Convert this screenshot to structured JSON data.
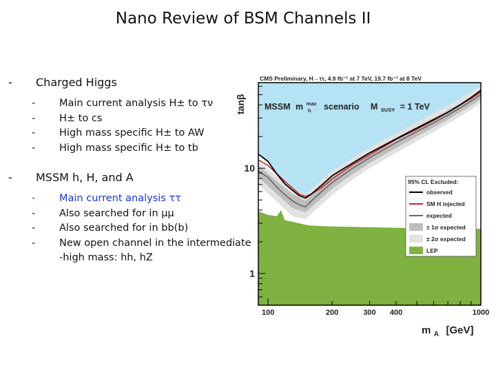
{
  "slide": {
    "title": "Nano Review of BSM Channels II",
    "sections": [
      {
        "label": "Charged Higgs",
        "items": [
          "Main current analysis H± to τν",
          "H± to cs",
          "High mass specific H± to AW",
          "High mass specific H± to tb"
        ]
      },
      {
        "label": "MSSM h, H, and A",
        "items": [
          "Main current analysis ττ",
          "Also searched for in μμ",
          "Also searched for in bb(b)",
          "New open channel in the intermediate"
        ],
        "continuation": "-high mass: hh, hZ"
      }
    ]
  },
  "colors": {
    "highlight_text": "#1a35c9",
    "excluded_region": "#b6e3f3",
    "lep": "#7fb241",
    "band_1sigma": "#bdbdbd",
    "band_2sigma": "#e2e2e2",
    "observed": "#000000",
    "sm_h_injected": "#c62828",
    "expected": "#666666"
  },
  "chart_data": {
    "type": "area",
    "header": "CMS Preliminary, H→ττ, 4.9 fb⁻¹ at 7 TeV, 19.7 fb⁻¹ at 8 TeV",
    "scenario": {
      "prefix": "MSSM",
      "m": "m",
      "sub": "h",
      "sup": "max",
      "word": "scenario",
      "msusy_m": "M",
      "msusy_sub": "SUSY",
      "msusy_val": "= 1 TeV"
    },
    "xlabel": "m",
    "xlabel_sub": "A",
    "xlabel_unit": "[GeV]",
    "ylabel": "tanβ",
    "xscale": "log",
    "yscale": "log",
    "xlim": [
      90,
      1000
    ],
    "ylim": [
      0.5,
      65
    ],
    "xticks": [
      {
        "value": 100,
        "label": "100"
      },
      {
        "value": 200,
        "label": "200"
      },
      {
        "value": 300,
        "label": "300"
      },
      {
        "value": 400,
        "label": "400"
      },
      {
        "value": 1000,
        "label": "1000"
      }
    ],
    "yticks": [
      {
        "value": 1,
        "label": "1"
      },
      {
        "value": 10,
        "label": "10"
      }
    ],
    "legend": {
      "title": "95% CL Excluded:",
      "placement": "right",
      "entries": [
        {
          "label": "observed",
          "style": "line",
          "color": "#000000"
        },
        {
          "label": "SM H injected",
          "style": "line",
          "color": "#c62828"
        },
        {
          "label": "expected",
          "style": "line",
          "color": "#666666"
        },
        {
          "label": "± 1σ expected",
          "style": "box",
          "color": "#bdbdbd"
        },
        {
          "label": "± 2σ expected",
          "style": "box",
          "color": "#e2e2e2"
        },
        {
          "label": "LEP",
          "style": "box",
          "color": "#7fb241"
        }
      ]
    },
    "series": {
      "observed": {
        "x": [
          90,
          100,
          110,
          120,
          130,
          140,
          150,
          160,
          180,
          200,
          250,
          300,
          400,
          500,
          600,
          700,
          800,
          900,
          1000
        ],
        "y": [
          13.6,
          11.6,
          8.8,
          7.1,
          6.2,
          5.5,
          5.2,
          5.7,
          7.0,
          8.5,
          11.2,
          14.0,
          19.0,
          24.0,
          29.0,
          34.0,
          40.0,
          47.0,
          55.0
        ]
      },
      "sm_h_injected": {
        "x": [
          90,
          100,
          120,
          140,
          150,
          160,
          180,
          200,
          250,
          300,
          400,
          500,
          600,
          700,
          800,
          900,
          1000
        ],
        "y": [
          12.0,
          10.6,
          7.5,
          5.7,
          5.4,
          5.7,
          6.6,
          7.9,
          10.8,
          13.4,
          18.8,
          23.5,
          28.5,
          34.0,
          40.0,
          46.0,
          53.0
        ]
      },
      "expected": {
        "x": [
          90,
          100,
          110,
          120,
          130,
          140,
          150,
          160,
          180,
          200,
          250,
          300,
          400,
          500,
          600,
          700,
          800,
          900,
          1000
        ],
        "y": [
          9.4,
          8.2,
          6.6,
          5.6,
          4.9,
          4.5,
          4.3,
          4.9,
          6.1,
          7.3,
          10.0,
          12.6,
          17.5,
          22.3,
          27.0,
          32.0,
          37.5,
          43.5,
          50.0
        ]
      },
      "band_1sigma": {
        "x": [
          90,
          110,
          130,
          150,
          180,
          200,
          250,
          300,
          400,
          500,
          600,
          700,
          800,
          900,
          1000
        ],
        "lo": [
          8.2,
          5.7,
          4.2,
          3.8,
          5.3,
          6.4,
          8.8,
          11.2,
          15.6,
          20.0,
          24.5,
          29.0,
          34.0,
          39.5,
          45.5
        ],
        "hi": [
          10.6,
          7.5,
          5.7,
          4.9,
          7.0,
          8.3,
          11.3,
          14.1,
          19.5,
          24.8,
          30.0,
          35.5,
          41.5,
          48.0,
          55.0
        ]
      },
      "band_2sigma": {
        "x": [
          90,
          110,
          130,
          150,
          180,
          200,
          250,
          300,
          400,
          500,
          600,
          700,
          800,
          900,
          1000
        ],
        "lo": [
          7.0,
          4.8,
          3.5,
          3.3,
          4.6,
          5.6,
          7.8,
          10.0,
          14.0,
          18.0,
          22.2,
          26.5,
          31.0,
          36.0,
          41.5
        ],
        "hi": [
          11.8,
          8.4,
          6.4,
          5.6,
          7.9,
          9.4,
          12.6,
          15.7,
          21.5,
          27.5,
          33.5,
          39.5,
          46.0,
          53.0,
          60.0
        ]
      },
      "lep": {
        "x": [
          90,
          100,
          110,
          115,
          120,
          130,
          140,
          150,
          160,
          200,
          300,
          400,
          500,
          700,
          1000
        ],
        "y": [
          3.9,
          3.6,
          3.5,
          4.0,
          3.2,
          3.1,
          3.0,
          2.9,
          2.85,
          2.8,
          2.75,
          2.72,
          2.7,
          2.68,
          2.65
        ]
      }
    }
  }
}
